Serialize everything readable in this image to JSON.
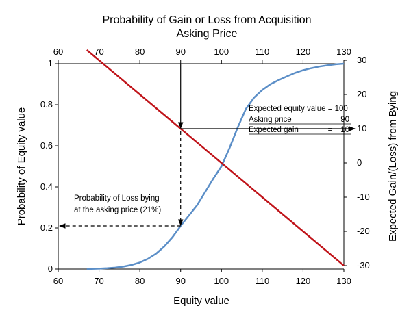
{
  "chart_data": {
    "type": "line",
    "title_line1": "Probability of Gain or Loss from Acquisition",
    "title_line2": "Asking Price",
    "xlabel": "Equity value",
    "ylabel_left": "Probability of Equity value",
    "ylabel_right": "Expected Gain/(Loss) from Bying",
    "xlim": [
      60,
      130
    ],
    "ylim_left": [
      0,
      1
    ],
    "ylim_right": [
      -30,
      30
    ],
    "x_ticks": [
      60,
      70,
      80,
      90,
      100,
      110,
      120,
      130
    ],
    "y_left_ticks": [
      0,
      0.2,
      0.4,
      0.6,
      0.8,
      1
    ],
    "y_left_tick_labels": [
      "0",
      "0.2",
      "0.4",
      "0.6",
      "0.8",
      "1"
    ],
    "y_right_ticks": [
      -30,
      -20,
      -10,
      0,
      10,
      20,
      30
    ],
    "grid": false,
    "series": [
      {
        "axis": "left",
        "color": "#5b8ec7",
        "x": [
          67,
          70,
          72,
          74,
          76,
          78,
          80,
          82,
          84,
          86,
          88,
          90,
          92,
          94,
          96,
          98,
          100,
          102,
          104,
          106,
          108,
          110,
          112,
          114,
          116,
          118,
          120,
          122,
          124,
          126,
          128,
          130
        ],
        "y": [
          0.0,
          0.002,
          0.004,
          0.007,
          0.012,
          0.02,
          0.032,
          0.05,
          0.075,
          0.11,
          0.155,
          0.21,
          0.26,
          0.31,
          0.375,
          0.44,
          0.5,
          0.59,
          0.69,
          0.78,
          0.835,
          0.872,
          0.9,
          0.92,
          0.938,
          0.955,
          0.968,
          0.978,
          0.986,
          0.992,
          0.997,
          1.0
        ]
      },
      {
        "axis": "right",
        "color": "#c0141a",
        "x": [
          67,
          130
        ],
        "y": [
          33,
          -30
        ]
      }
    ],
    "annotation_box": {
      "line1": "Expected equity value = 100",
      "line2_label": "Asking price",
      "line2_eq": "=",
      "line2_value": "90",
      "line3_label": "Expected gain",
      "line3_eq": "=",
      "line3_value": "10"
    },
    "annotation_loss": {
      "line1": "Probability of Loss bying",
      "line2": "at the asking price (21%)"
    },
    "markers": {
      "asking_price": 90,
      "loss_probability": 0.21,
      "expected_gain": 10
    }
  }
}
